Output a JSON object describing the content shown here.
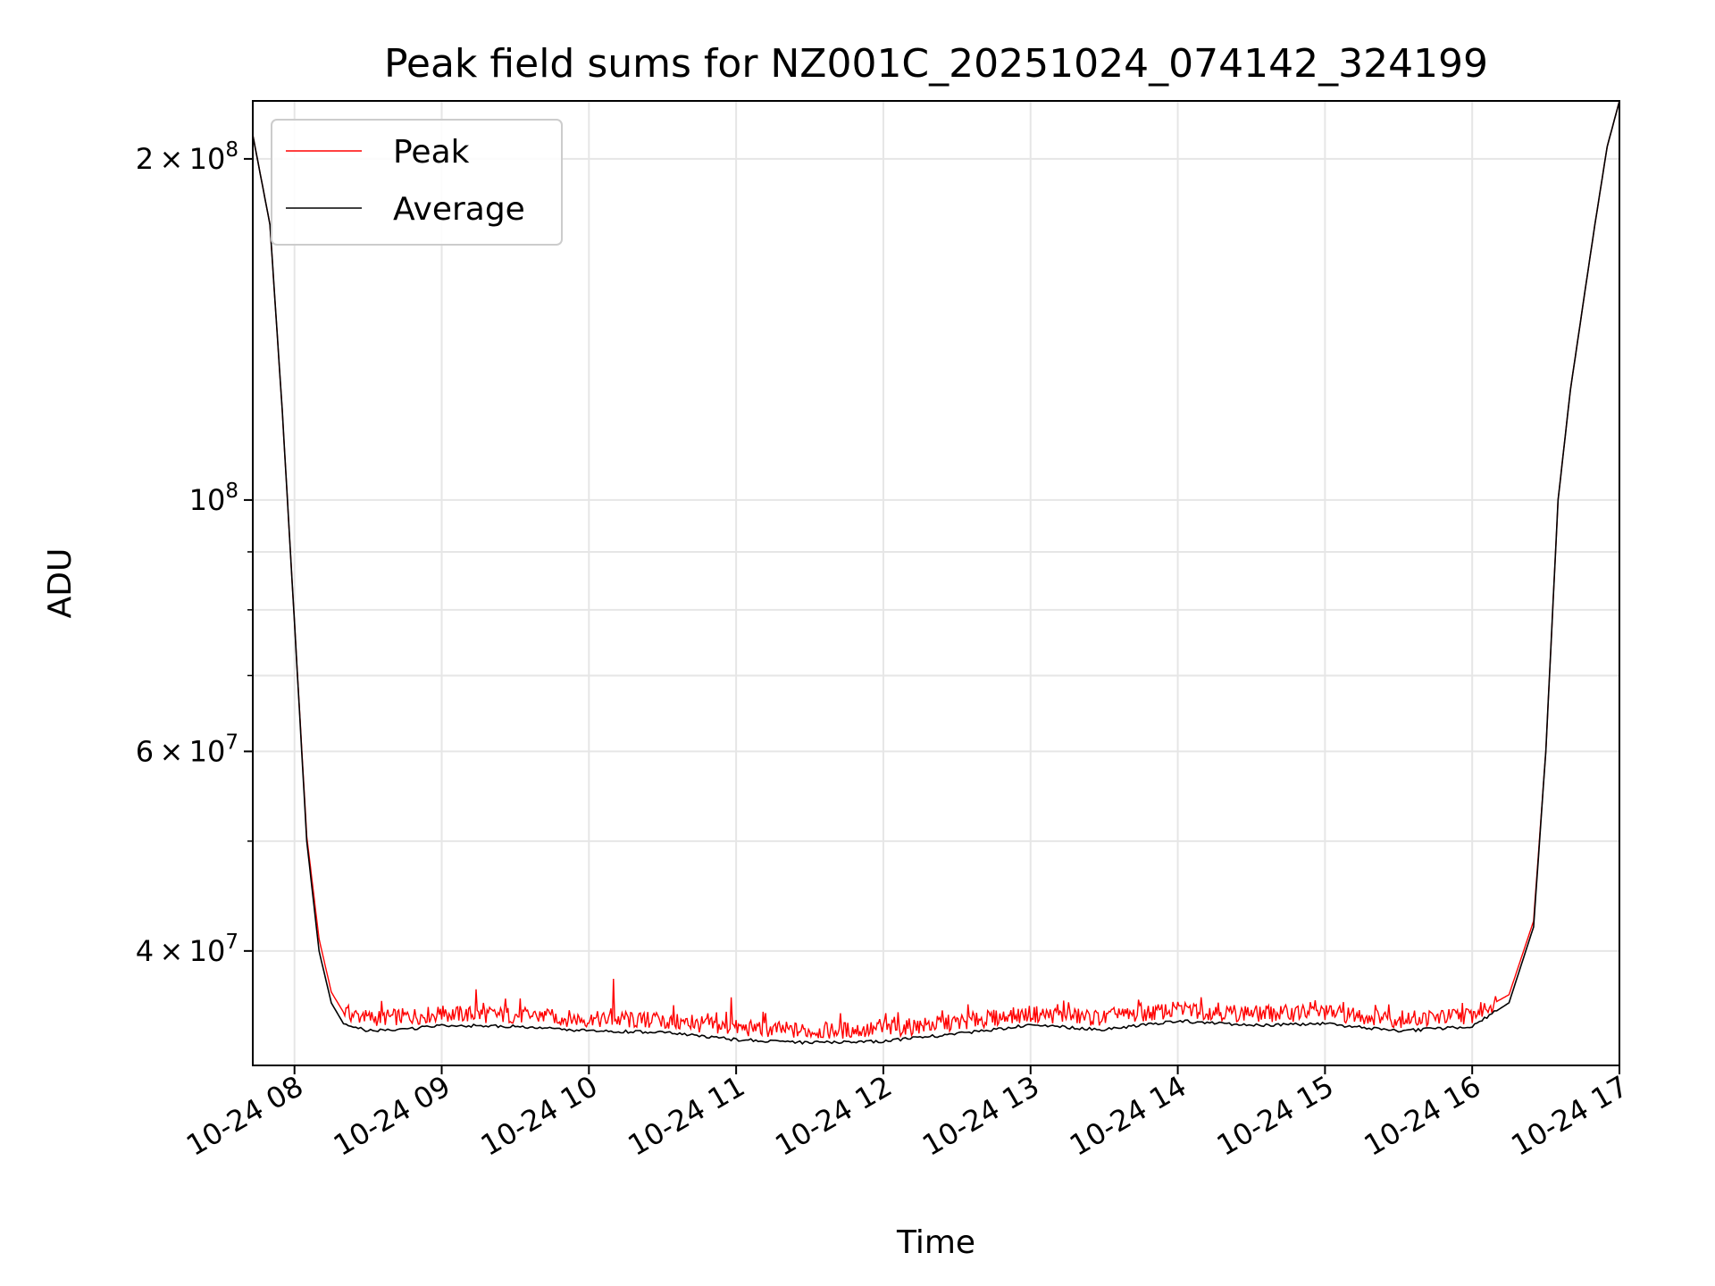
{
  "chart_data": {
    "type": "line",
    "title": "Peak field sums for NZ001C_20251024_074142_324199",
    "xlabel": "Time",
    "ylabel": "ADU",
    "yscale": "log",
    "xlim": [
      "2025-10-24 07:43",
      "2025-10-24 17:00"
    ],
    "ylim": [
      31700000,
      225000000
    ],
    "grid": true,
    "legend_position": "upper-left",
    "x_ticks": [
      {
        "value": "2025-10-24 08:00",
        "label": "10-24 08"
      },
      {
        "value": "2025-10-24 09:00",
        "label": "10-24 09"
      },
      {
        "value": "2025-10-24 10:00",
        "label": "10-24 10"
      },
      {
        "value": "2025-10-24 11:00",
        "label": "10-24 11"
      },
      {
        "value": "2025-10-24 12:00",
        "label": "10-24 12"
      },
      {
        "value": "2025-10-24 13:00",
        "label": "10-24 13"
      },
      {
        "value": "2025-10-24 14:00",
        "label": "10-24 14"
      },
      {
        "value": "2025-10-24 15:00",
        "label": "10-24 15"
      },
      {
        "value": "2025-10-24 16:00",
        "label": "10-24 16"
      },
      {
        "value": "2025-10-24 17:00",
        "label": "10-24 17"
      }
    ],
    "y_ticks": [
      {
        "value": 200000000,
        "mantissa": "2 × 10",
        "exp": "8"
      },
      {
        "value": 100000000,
        "mantissa": "10",
        "exp": "8"
      },
      {
        "value": 60000000,
        "mantissa": "6 × 10",
        "exp": "7"
      },
      {
        "value": 40000000,
        "mantissa": "4 × 10",
        "exp": "7"
      }
    ],
    "y_minor_ticks": [
      30000000,
      50000000,
      70000000,
      80000000,
      90000000
    ],
    "x": [
      "2025-10-24 07:43",
      "2025-10-24 07:50",
      "2025-10-24 07:55",
      "2025-10-24 08:00",
      "2025-10-24 08:05",
      "2025-10-24 08:10",
      "2025-10-24 08:15",
      "2025-10-24 08:20",
      "2025-10-24 08:30",
      "2025-10-24 08:45",
      "2025-10-24 09:00",
      "2025-10-24 09:30",
      "2025-10-24 10:00",
      "2025-10-24 10:30",
      "2025-10-24 11:00",
      "2025-10-24 11:30",
      "2025-10-24 12:00",
      "2025-10-24 12:30",
      "2025-10-24 13:00",
      "2025-10-24 13:30",
      "2025-10-24 14:00",
      "2025-10-24 14:30",
      "2025-10-24 15:00",
      "2025-10-24 15:30",
      "2025-10-24 16:00",
      "2025-10-24 16:15",
      "2025-10-24 16:25",
      "2025-10-24 16:30",
      "2025-10-24 16:35",
      "2025-10-24 16:40",
      "2025-10-24 16:45",
      "2025-10-24 16:50",
      "2025-10-24 16:55",
      "2025-10-24 17:00"
    ],
    "series": [
      {
        "name": "Average",
        "color": "#000000",
        "values": [
          210000000,
          175000000,
          120000000,
          78000000,
          50000000,
          40000000,
          36000000,
          34500000,
          34000000,
          34100000,
          34400000,
          34300000,
          34000000,
          33900000,
          33400000,
          33200000,
          33300000,
          33800000,
          34400000,
          34100000,
          34700000,
          34400000,
          34500000,
          34000000,
          34300000,
          36000000,
          42000000,
          60000000,
          100000000,
          125000000,
          148000000,
          175000000,
          205000000,
          225000000
        ]
      },
      {
        "name": "Peak",
        "color": "#ff0000",
        "values": [
          210000000,
          175000000,
          120000000,
          78000000,
          50500000,
          41000000,
          36800000,
          35300000,
          34900000,
          35000000,
          35200000,
          35100000,
          34800000,
          34700000,
          34200000,
          34000000,
          34100000,
          34600000,
          35200000,
          34900000,
          35500000,
          35200000,
          35300000,
          34800000,
          35100000,
          36600000,
          42500000,
          60000000,
          100000000,
          125000000,
          148000000,
          175000000,
          205000000,
          225000000
        ],
        "spikes": [
          {
            "x": "2025-10-24 09:14",
            "y": 37000000
          },
          {
            "x": "2025-10-24 10:10",
            "y": 37800000
          },
          {
            "x": "2025-10-24 10:58",
            "y": 36400000
          }
        ]
      }
    ],
    "legend": [
      {
        "label": "Peak",
        "color": "#ff0000"
      },
      {
        "label": "Average",
        "color": "#000000"
      }
    ]
  }
}
